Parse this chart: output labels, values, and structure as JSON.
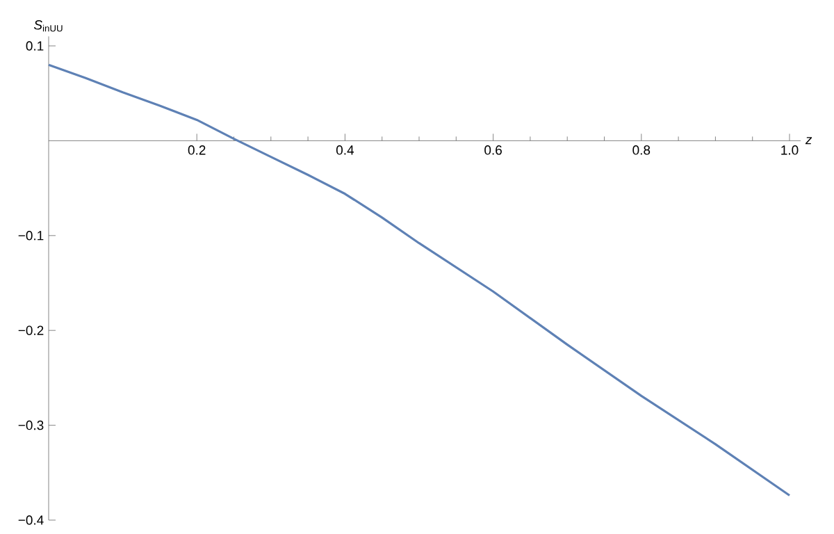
{
  "chart_data": {
    "type": "line",
    "xlabel": "z",
    "ylabel": "*S*$_{inUU}$",
    "x": [
      0,
      0.05,
      0.1,
      0.15,
      0.2,
      0.25,
      0.3,
      0.35,
      0.4,
      0.45,
      0.5,
      0.6,
      0.7,
      0.8,
      0.9,
      1.0
    ],
    "series": [
      {
        "color": "#5e81b5",
        "values": [
          0.08,
          0.066,
          0.051,
          0.037,
          0.022,
          0.002,
          -0.017,
          -0.036,
          -0.056,
          -0.081,
          -0.108,
          -0.159,
          -0.215,
          -0.269,
          -0.32,
          -0.374
        ]
      }
    ],
    "xlim": [
      0,
      1.015
    ],
    "ylim": [
      -0.4,
      0.11
    ],
    "xticks": [
      {
        "value": 0.2,
        "label": "0.2"
      },
      {
        "value": 0.4,
        "label": "0.4"
      },
      {
        "value": 0.6,
        "label": "0.6"
      },
      {
        "value": 0.8,
        "label": "0.8"
      },
      {
        "value": 1.0,
        "label": "1.0"
      }
    ],
    "yticks": [
      {
        "value": 0.1,
        "label": "0.1"
      },
      {
        "value": -0.1,
        "label": "−0.1"
      },
      {
        "value": -0.2,
        "label": "−0.2"
      },
      {
        "value": -0.3,
        "label": "−0.3"
      },
      {
        "value": -0.4,
        "label": "−0.4"
      }
    ],
    "marker": "none",
    "line_style": "solid"
  }
}
